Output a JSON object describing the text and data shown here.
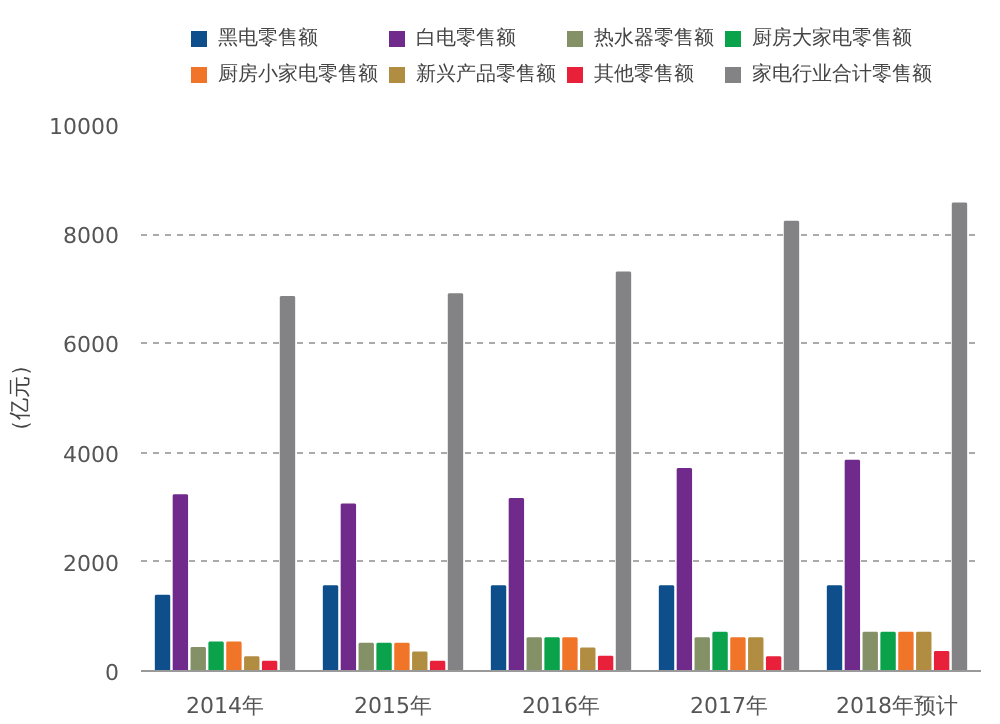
{
  "chart_data": {
    "type": "bar",
    "ylabel": "（亿元）",
    "categories": [
      "2014年",
      "2015年",
      "2016年",
      "2017年",
      "2018年预计"
    ],
    "ylim": [
      0,
      10000
    ],
    "yticks": [
      0,
      2000,
      4000,
      6000,
      8000,
      10000
    ],
    "grid": "y",
    "legend": "top",
    "series": [
      {
        "name": "黑电零售额",
        "color": "#0e4f8b",
        "values": [
          1380,
          1550,
          1550,
          1550,
          1550
        ]
      },
      {
        "name": "白电零售额",
        "color": "#702a8c",
        "values": [
          3220,
          3050,
          3150,
          3700,
          3850
        ]
      },
      {
        "name": "热水器零售额",
        "color": "#849066",
        "values": [
          420,
          500,
          600,
          600,
          700
        ]
      },
      {
        "name": "厨房大家电零售额",
        "color": "#0aa24b",
        "values": [
          520,
          500,
          600,
          700,
          700
        ]
      },
      {
        "name": "厨房小家电零售额",
        "color": "#f07528",
        "values": [
          520,
          500,
          600,
          600,
          700
        ]
      },
      {
        "name": "新兴产品零售额",
        "color": "#b08d41",
        "values": [
          250,
          340,
          410,
          600,
          700
        ]
      },
      {
        "name": "其他零售额",
        "color": "#e8203a",
        "values": [
          170,
          170,
          260,
          250,
          350
        ]
      },
      {
        "name": "家电行业合计零售额",
        "color": "#838385",
        "values": [
          6850,
          6900,
          7300,
          8230,
          8560
        ]
      }
    ]
  }
}
